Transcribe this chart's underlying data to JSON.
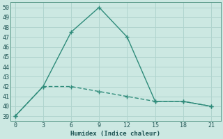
{
  "x": [
    0,
    3,
    6,
    9,
    12,
    15,
    18,
    21
  ],
  "line1_y": [
    39,
    42,
    47.5,
    50,
    47,
    40.5,
    40.5,
    40
  ],
  "line2_y": [
    39,
    42,
    42,
    41.5,
    41,
    40.5,
    40.5,
    40
  ],
  "line_color": "#2e8b7a",
  "bg_color": "#cce8e2",
  "grid_color": "#b0d4ce",
  "xlabel": "Humidex (Indice chaleur)",
  "ylim_min": 38.5,
  "ylim_max": 50.5,
  "xlim_min": -0.5,
  "xlim_max": 22,
  "yticks": [
    39,
    40,
    41,
    42,
    43,
    44,
    45,
    46,
    47,
    48,
    49,
    50
  ],
  "xticks": [
    0,
    3,
    6,
    9,
    12,
    15,
    18,
    21
  ],
  "markersize": 4,
  "linewidth": 1.0
}
